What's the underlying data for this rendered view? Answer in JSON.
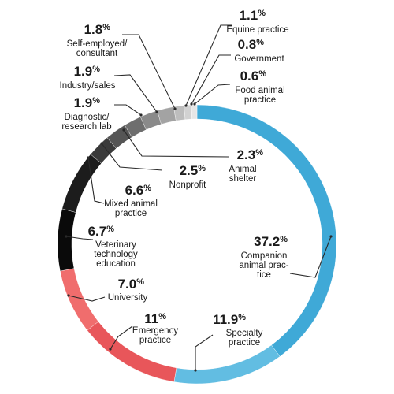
{
  "chart_data": {
    "type": "pie",
    "donut": true,
    "slices": [
      {
        "id": "companion",
        "value": 37.2,
        "value_text": "37.2",
        "label_lines": [
          "Companion",
          "animal prac-",
          "tice"
        ],
        "color": "#3fa9d7"
      },
      {
        "id": "specialty",
        "value": 11.9,
        "value_text": "11.9",
        "label_lines": [
          "Specialty",
          "practice"
        ],
        "color": "#62bde2"
      },
      {
        "id": "emergency",
        "value": 11,
        "value_text": "11",
        "label_lines": [
          "Emergency",
          "practice"
        ],
        "color": "#e8565a"
      },
      {
        "id": "university",
        "value": 7.0,
        "value_text": "7.0",
        "label_lines": [
          "University"
        ],
        "color": "#f06d6d"
      },
      {
        "id": "vet-tech-education",
        "value": 6.7,
        "value_text": "6.7",
        "label_lines": [
          "Veterinary",
          "technology",
          "education"
        ],
        "color": "#0a0a0a"
      },
      {
        "id": "mixed-animal",
        "value": 6.6,
        "value_text": "6.6",
        "label_lines": [
          "Mixed animal",
          "practice"
        ],
        "color": "#1c1c1c"
      },
      {
        "id": "nonprofit",
        "value": 2.5,
        "value_text": "2.5",
        "label_lines": [
          "Nonprofit"
        ],
        "color": "#3a3a3a"
      },
      {
        "id": "animal-shelter",
        "value": 2.3,
        "value_text": "2.3",
        "label_lines": [
          "Animal",
          "shelter"
        ],
        "color": "#555555"
      },
      {
        "id": "diagnostic-research",
        "value": 1.9,
        "value_text": "1.9",
        "label_lines": [
          "Diagnostic/",
          "research lab"
        ],
        "color": "#6e6e6e"
      },
      {
        "id": "industry-sales",
        "value": 1.9,
        "value_text": "1.9",
        "label_lines": [
          "Industry/sales"
        ],
        "color": "#8a8a8a"
      },
      {
        "id": "self-employed",
        "value": 1.8,
        "value_text": "1.8",
        "label_lines": [
          "Self-employed/",
          "consultant"
        ],
        "color": "#a3a3a3"
      },
      {
        "id": "equine",
        "value": 1.1,
        "value_text": "1.1",
        "label_lines": [
          "Equine practice"
        ],
        "color": "#bdbdbd"
      },
      {
        "id": "government",
        "value": 0.8,
        "value_text": "0.8",
        "label_lines": [
          "Government"
        ],
        "color": "#d2d2d2"
      },
      {
        "id": "food-animal",
        "value": 0.6,
        "value_text": "0.6",
        "label_lines": [
          "Food animal",
          "practice"
        ],
        "color": "#e6e6e6"
      }
    ],
    "percent_sign": "%",
    "start": "12 o'clock",
    "direction": "clockwise",
    "legend": "none",
    "colors": {
      "text": "#1a1a1a",
      "leader": "#2a2a2a",
      "background": "#ffffff"
    }
  }
}
